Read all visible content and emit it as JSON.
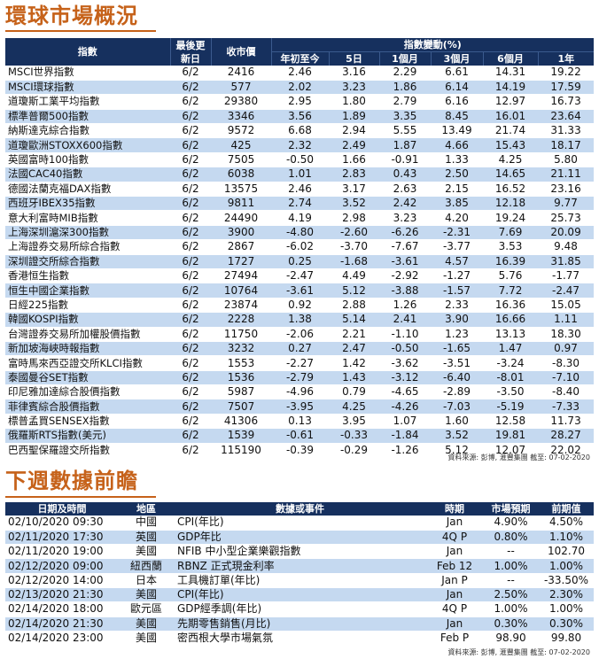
{
  "market": {
    "title": "環球市場概況",
    "headers": {
      "index": "指數",
      "last_update": "最後更新日",
      "close": "收市價",
      "change": "指數變動(%)",
      "periods": [
        "年初至今",
        "5日",
        "1個月",
        "3個月",
        "6個月",
        "1年"
      ]
    },
    "rows": [
      [
        "MSCI世界指數",
        "6/2",
        "2416",
        "2.46",
        "3.16",
        "2.29",
        "6.61",
        "14.31",
        "19.22"
      ],
      [
        "MSCI環球指數",
        "6/2",
        "577",
        "2.02",
        "3.23",
        "1.86",
        "6.14",
        "14.19",
        "17.59"
      ],
      [
        "道瓊斯工業平均指數",
        "6/2",
        "29380",
        "2.95",
        "1.80",
        "2.79",
        "6.16",
        "12.97",
        "16.73"
      ],
      [
        "標準普爾500指數",
        "6/2",
        "3346",
        "3.56",
        "1.89",
        "3.35",
        "8.45",
        "16.01",
        "23.64"
      ],
      [
        "納斯達克綜合指數",
        "6/2",
        "9572",
        "6.68",
        "2.94",
        "5.55",
        "13.49",
        "21.74",
        "31.33"
      ],
      [
        "道瓊歐洲STOXX600指數",
        "6/2",
        "425",
        "2.32",
        "2.49",
        "1.87",
        "4.66",
        "15.43",
        "18.17"
      ],
      [
        "英國富時100指數",
        "6/2",
        "7505",
        "-0.50",
        "1.66",
        "-0.91",
        "1.33",
        "4.25",
        "5.80"
      ],
      [
        "法國CAC40指數",
        "6/2",
        "6038",
        "1.01",
        "2.83",
        "0.43",
        "2.50",
        "14.65",
        "21.11"
      ],
      [
        "德國法蘭克福DAX指數",
        "6/2",
        "13575",
        "2.46",
        "3.17",
        "2.63",
        "2.15",
        "16.52",
        "23.16"
      ],
      [
        "西班牙IBEX35指數",
        "6/2",
        "9811",
        "2.74",
        "3.52",
        "2.42",
        "3.85",
        "12.18",
        "9.77"
      ],
      [
        "意大利富時MIB指數",
        "6/2",
        "24490",
        "4.19",
        "2.98",
        "3.23",
        "4.20",
        "19.24",
        "25.73"
      ],
      [
        "上海深圳滬深300指數",
        "6/2",
        "3900",
        "-4.80",
        "-2.60",
        "-6.26",
        "-2.31",
        "7.69",
        "20.09"
      ],
      [
        "上海證券交易所綜合指數",
        "6/2",
        "2867",
        "-6.02",
        "-3.70",
        "-7.67",
        "-3.77",
        "3.53",
        "9.48"
      ],
      [
        "深圳證交所綜合指數",
        "6/2",
        "1727",
        "0.25",
        "-1.68",
        "-3.61",
        "4.57",
        "16.39",
        "31.85"
      ],
      [
        "香港恒生指數",
        "6/2",
        "27494",
        "-2.47",
        "4.49",
        "-2.92",
        "-1.27",
        "5.76",
        "-1.77"
      ],
      [
        "恒生中國企業指數",
        "6/2",
        "10764",
        "-3.61",
        "5.12",
        "-3.88",
        "-1.57",
        "7.72",
        "-2.47"
      ],
      [
        "日經225指數",
        "6/2",
        "23874",
        "0.92",
        "2.88",
        "1.26",
        "2.33",
        "16.36",
        "15.05"
      ],
      [
        "韓國KOSPI指數",
        "6/2",
        "2228",
        "1.38",
        "5.14",
        "2.41",
        "3.90",
        "16.66",
        "1.11"
      ],
      [
        "台灣證券交易所加權股價指數",
        "6/2",
        "11750",
        "-2.06",
        "2.21",
        "-1.10",
        "1.23",
        "13.13",
        "18.30"
      ],
      [
        "新加坡海峽時報指數",
        "6/2",
        "3232",
        "0.27",
        "2.47",
        "-0.50",
        "-1.65",
        "1.47",
        "0.97"
      ],
      [
        "富時馬來西亞證交所KLCI指數",
        "6/2",
        "1553",
        "-2.27",
        "1.42",
        "-3.62",
        "-3.51",
        "-3.24",
        "-8.30"
      ],
      [
        "泰國曼谷SET指數",
        "6/2",
        "1536",
        "-2.79",
        "1.43",
        "-3.12",
        "-6.40",
        "-8.01",
        "-7.10"
      ],
      [
        "印尼雅加達綜合股價指數",
        "6/2",
        "5987",
        "-4.96",
        "0.79",
        "-4.65",
        "-2.89",
        "-3.50",
        "-8.40"
      ],
      [
        "菲律賓綜合股價指數",
        "6/2",
        "7507",
        "-3.95",
        "4.25",
        "-4.26",
        "-7.03",
        "-5.19",
        "-7.33"
      ],
      [
        "標普孟買SENSEX指數",
        "6/2",
        "41306",
        "0.13",
        "3.95",
        "1.07",
        "1.60",
        "12.58",
        "11.73"
      ],
      [
        "俄羅斯RTS指數(美元)",
        "6/2",
        "1539",
        "-0.61",
        "-0.33",
        "-1.84",
        "3.52",
        "19.81",
        "28.27"
      ],
      [
        "巴西聖保羅證交所指數",
        "6/2",
        "115190",
        "-0.39",
        "-0.29",
        "-1.26",
        "5.12",
        "12.07",
        "22.02"
      ]
    ],
    "source": "資料來源: 彭博, 滙豐集團 截至: 07-02-2020"
  },
  "calendar": {
    "title": "下週數據前瞻",
    "headers": [
      "日期及時間",
      "地區",
      "數據或事件",
      "時期",
      "市場預期",
      "前期值"
    ],
    "rows": [
      [
        "02/10/2020 09:30",
        "中國",
        "CPI(年比)",
        "Jan",
        "4.90%",
        "4.50%"
      ],
      [
        "02/11/2020 17:30",
        "英國",
        "GDP年比",
        "4Q P",
        "0.80%",
        "1.10%"
      ],
      [
        "02/11/2020 19:00",
        "美國",
        "NFIB 中小型企業樂觀指數",
        "Jan",
        "--",
        "102.70"
      ],
      [
        "02/12/2020 09:00",
        "紐西蘭",
        "RBNZ 正式現金利率",
        "Feb 12",
        "1.00%",
        "1.00%"
      ],
      [
        "02/12/2020 14:00",
        "日本",
        "工具機訂單(年比)",
        "Jan P",
        "--",
        "-33.50%"
      ],
      [
        "02/13/2020 21:30",
        "美國",
        "CPI(年比)",
        "Jan",
        "2.50%",
        "2.30%"
      ],
      [
        "02/14/2020 18:00",
        "歐元區",
        "GDP經季調(年比)",
        "4Q P",
        "1.00%",
        "1.00%"
      ],
      [
        "02/14/2020 21:30",
        "美國",
        "先期零售銷售(月比)",
        "Jan",
        "0.30%",
        "0.30%"
      ],
      [
        "02/14/2020 23:00",
        "美國",
        "密西根大學市場氣氛",
        "Feb P",
        "98.90",
        "99.80"
      ]
    ],
    "source": "資料來源: 彭博, 滙豐集團 截至: 07-02-2020"
  }
}
